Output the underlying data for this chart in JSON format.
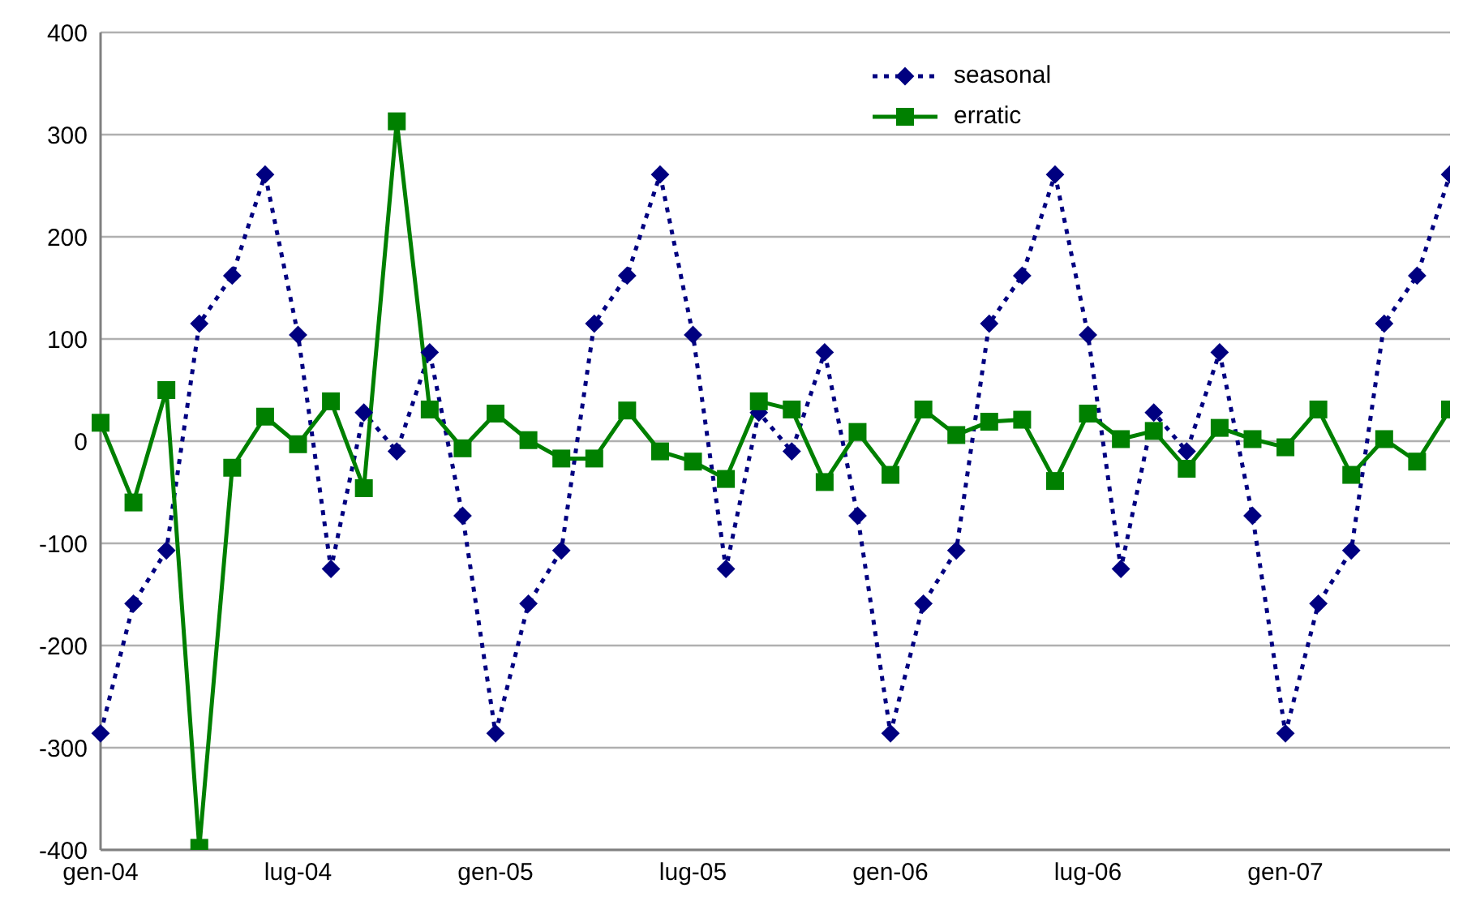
{
  "chart_data": {
    "type": "line",
    "categories": [
      "gen-04",
      null,
      null,
      null,
      null,
      null,
      "lug-04",
      null,
      null,
      null,
      null,
      null,
      "gen-05",
      null,
      null,
      null,
      null,
      null,
      "lug-05",
      null,
      null,
      null,
      null,
      null,
      "gen-06",
      null,
      null,
      null,
      null,
      null,
      "lug-06",
      null,
      null,
      null,
      null,
      null,
      "gen-07",
      null,
      null,
      null,
      null,
      null
    ],
    "series": [
      {
        "name": "seasonal",
        "color": "#000080",
        "marker": "diamond",
        "line_style": "dotted",
        "values": [
          -286,
          -159,
          -107,
          115,
          162,
          261,
          104,
          -125,
          28,
          -10,
          87,
          -73,
          -286,
          -159,
          -107,
          115,
          162,
          261,
          104,
          -125,
          28,
          -10,
          87,
          -73,
          -286,
          -159,
          -107,
          115,
          162,
          261,
          104,
          -125,
          28,
          -10,
          87,
          -73,
          -286,
          -159,
          -107,
          115,
          162,
          261
        ]
      },
      {
        "name": "erratic",
        "color": "#008000",
        "marker": "square",
        "line_style": "solid",
        "values": [
          18,
          -60,
          50,
          -398,
          -26,
          24,
          -3,
          39,
          -46,
          313,
          31,
          -7,
          27,
          1,
          -17,
          -17,
          30,
          -10,
          -20,
          -37,
          39,
          31,
          -40,
          9,
          -33,
          31,
          6,
          19,
          21,
          -39,
          27,
          2,
          10,
          -27,
          13,
          2,
          -6,
          31,
          -33,
          2,
          -20,
          31
        ]
      }
    ],
    "ylim": [
      -400,
      400
    ],
    "yticks": [
      -400,
      -300,
      -200,
      -100,
      0,
      100,
      200,
      300,
      400
    ],
    "grid": "y",
    "legend": "top"
  }
}
